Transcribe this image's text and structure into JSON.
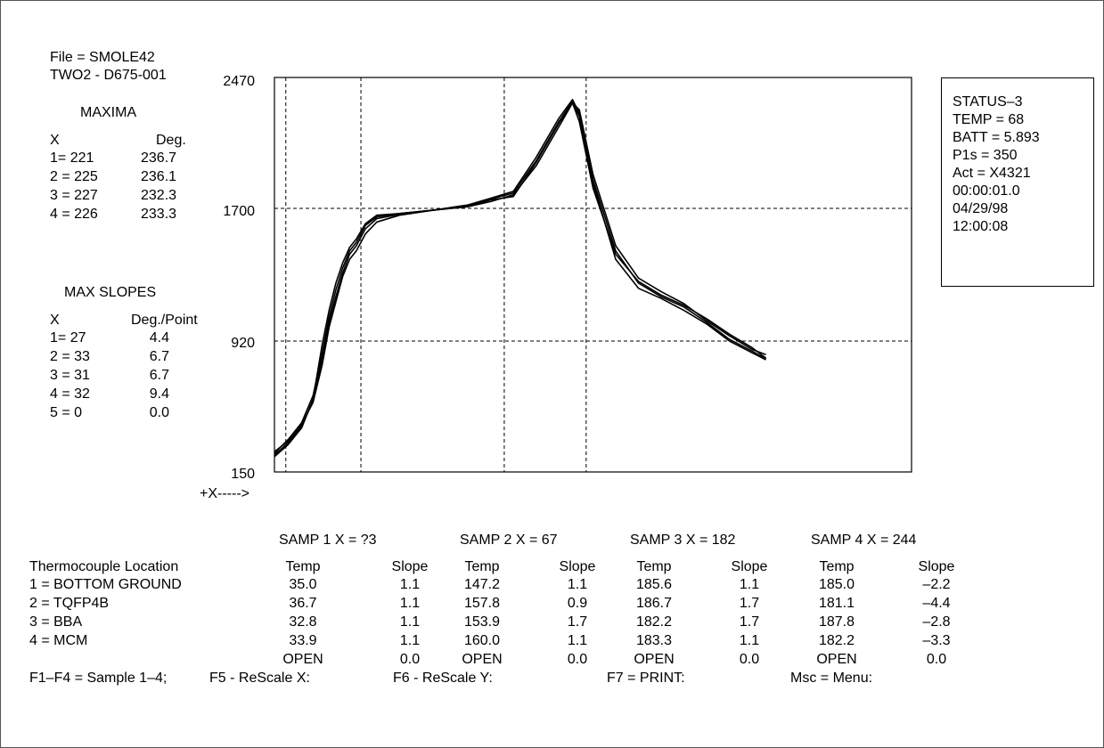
{
  "file_line": "File = SMOLE42",
  "profile_line": "TWO2 - D675-001",
  "maxima": {
    "title": "MAXIMA",
    "col_x": "X",
    "col_value": "Deg.",
    "rows": [
      {
        "x": "1= 221",
        "value": "236.7"
      },
      {
        "x": "2 = 225",
        "value": "236.1"
      },
      {
        "x": "3 = 227",
        "value": "232.3"
      },
      {
        "x": "4 = 226",
        "value": "233.3"
      }
    ]
  },
  "max_slopes": {
    "title": "MAX SLOPES",
    "col_x": "X",
    "col_value": "Deg./Point",
    "rows": [
      {
        "x": "1= 27",
        "value": "4.4"
      },
      {
        "x": "2 = 33",
        "value": "6.7"
      },
      {
        "x": "3 = 31",
        "value": "6.7"
      },
      {
        "x": "4 = 32",
        "value": "9.4"
      },
      {
        "x": "5 = 0",
        "value": "0.0"
      }
    ]
  },
  "status": {
    "lines": [
      "STATUS–3",
      "TEMP = 68",
      "BATT = 5.893",
      "P1s = 350",
      "Act = X4321",
      "00:00:01.0",
      "04/29/98",
      "12:00:08"
    ]
  },
  "chart_data": {
    "type": "line",
    "y_tick_labels": [
      "2470",
      "1700",
      "920",
      "150"
    ],
    "ylim": [
      150,
      2470
    ],
    "x_axis_label": "+X----->",
    "xlim": [
      0,
      280
    ],
    "vertical_markers_x": [
      5,
      38,
      101,
      137
    ],
    "grid": "dashed",
    "series": [
      {
        "points": [
          [
            0,
            270
          ],
          [
            6,
            330
          ],
          [
            12,
            430
          ],
          [
            17,
            560
          ],
          [
            21,
            780
          ],
          [
            24,
            1000
          ],
          [
            27,
            1150
          ],
          [
            30,
            1300
          ],
          [
            33,
            1400
          ],
          [
            36,
            1450
          ],
          [
            40,
            1550
          ],
          [
            45,
            1620
          ],
          [
            55,
            1660
          ],
          [
            70,
            1690
          ],
          [
            85,
            1710
          ],
          [
            95,
            1740
          ],
          [
            105,
            1780
          ],
          [
            115,
            1950
          ],
          [
            125,
            2180
          ],
          [
            131,
            2320
          ],
          [
            134,
            2210
          ],
          [
            140,
            1820
          ],
          [
            150,
            1430
          ],
          [
            160,
            1270
          ],
          [
            170,
            1190
          ],
          [
            180,
            1130
          ],
          [
            190,
            1050
          ],
          [
            200,
            960
          ],
          [
            210,
            880
          ],
          [
            216,
            820
          ]
        ]
      },
      {
        "points": [
          [
            0,
            260
          ],
          [
            6,
            340
          ],
          [
            12,
            440
          ],
          [
            17,
            600
          ],
          [
            21,
            850
          ],
          [
            24,
            1060
          ],
          [
            27,
            1220
          ],
          [
            30,
            1350
          ],
          [
            33,
            1450
          ],
          [
            36,
            1500
          ],
          [
            40,
            1600
          ],
          [
            45,
            1650
          ],
          [
            55,
            1670
          ],
          [
            70,
            1690
          ],
          [
            85,
            1720
          ],
          [
            95,
            1760
          ],
          [
            105,
            1800
          ],
          [
            115,
            2000
          ],
          [
            125,
            2230
          ],
          [
            131,
            2340
          ],
          [
            134,
            2260
          ],
          [
            140,
            1850
          ],
          [
            150,
            1400
          ],
          [
            160,
            1230
          ],
          [
            170,
            1170
          ],
          [
            180,
            1100
          ],
          [
            190,
            1020
          ],
          [
            200,
            920
          ],
          [
            210,
            850
          ],
          [
            216,
            810
          ]
        ]
      },
      {
        "points": [
          [
            0,
            240
          ],
          [
            6,
            310
          ],
          [
            12,
            410
          ],
          [
            17,
            580
          ],
          [
            21,
            900
          ],
          [
            24,
            1100
          ],
          [
            27,
            1260
          ],
          [
            30,
            1380
          ],
          [
            33,
            1470
          ],
          [
            36,
            1520
          ],
          [
            40,
            1610
          ],
          [
            45,
            1660
          ],
          [
            55,
            1670
          ],
          [
            70,
            1690
          ],
          [
            85,
            1710
          ],
          [
            95,
            1750
          ],
          [
            105,
            1770
          ],
          [
            115,
            1970
          ],
          [
            125,
            2200
          ],
          [
            131,
            2320
          ],
          [
            134,
            2280
          ],
          [
            140,
            1900
          ],
          [
            150,
            1480
          ],
          [
            160,
            1290
          ],
          [
            170,
            1210
          ],
          [
            180,
            1140
          ],
          [
            190,
            1040
          ],
          [
            200,
            950
          ],
          [
            210,
            870
          ],
          [
            216,
            840
          ]
        ]
      },
      {
        "points": [
          [
            0,
            250
          ],
          [
            6,
            320
          ],
          [
            12,
            420
          ],
          [
            17,
            570
          ],
          [
            21,
            820
          ],
          [
            24,
            1030
          ],
          [
            27,
            1180
          ],
          [
            30,
            1320
          ],
          [
            33,
            1430
          ],
          [
            36,
            1480
          ],
          [
            40,
            1580
          ],
          [
            45,
            1640
          ],
          [
            55,
            1665
          ],
          [
            70,
            1690
          ],
          [
            85,
            1715
          ],
          [
            95,
            1755
          ],
          [
            105,
            1790
          ],
          [
            115,
            1980
          ],
          [
            125,
            2210
          ],
          [
            131,
            2330
          ],
          [
            134,
            2240
          ],
          [
            140,
            1870
          ],
          [
            150,
            1450
          ],
          [
            160,
            1260
          ],
          [
            170,
            1180
          ],
          [
            180,
            1120
          ],
          [
            190,
            1030
          ],
          [
            200,
            930
          ],
          [
            210,
            860
          ],
          [
            216,
            815
          ]
        ]
      }
    ]
  },
  "table": {
    "samples": [
      {
        "header": "SAMP 1 X = ?3"
      },
      {
        "header": "SAMP 2 X = 67"
      },
      {
        "header": "SAMP 3 X = 182"
      },
      {
        "header": "SAMP 4 X = 244"
      }
    ],
    "location_header": "Thermocouple Location",
    "temp_header": "Temp",
    "slope_header": "Slope",
    "rows": [
      {
        "location": "1 = BOTTOM GROUND",
        "values": [
          [
            "35.0",
            "1.1"
          ],
          [
            "147.2",
            "1.1"
          ],
          [
            "185.6",
            "1.1"
          ],
          [
            "185.0",
            "–2.2"
          ]
        ]
      },
      {
        "location": "2 = TQFP4B",
        "values": [
          [
            "36.7",
            "1.1"
          ],
          [
            "157.8",
            "0.9"
          ],
          [
            "186.7",
            "1.7"
          ],
          [
            "181.1",
            "–4.4"
          ]
        ]
      },
      {
        "location": "3 = BBA",
        "values": [
          [
            "32.8",
            "1.1"
          ],
          [
            "153.9",
            "1.7"
          ],
          [
            "182.2",
            "1.7"
          ],
          [
            "187.8",
            "–2.8"
          ]
        ]
      },
      {
        "location": "4 = MCM",
        "values": [
          [
            "33.9",
            "1.1"
          ],
          [
            "160.0",
            "1.1"
          ],
          [
            "183.3",
            "1.1"
          ],
          [
            "182.2",
            "–3.3"
          ]
        ]
      },
      {
        "location": "",
        "values": [
          [
            "OPEN",
            "0.0"
          ],
          [
            "OPEN",
            "0.0"
          ],
          [
            "OPEN",
            "0.0"
          ],
          [
            "OPEN",
            "0.0"
          ]
        ]
      }
    ]
  },
  "function_keys": [
    "F1–F4 = Sample 1–4;",
    "F5 - ReScale X:",
    "F6 - ReScale Y:",
    "F7 = PRINT:",
    "Msc = Menu:"
  ]
}
